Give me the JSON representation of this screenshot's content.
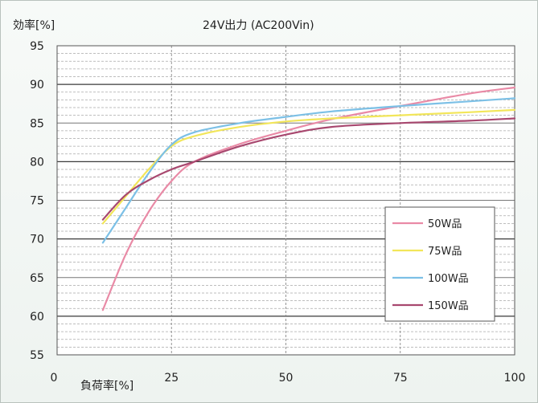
{
  "chart_data": {
    "type": "line",
    "title": "24V出力 (AC200Vin)",
    "ylabel": "効率[%]",
    "xlabel": "負荷率[%]",
    "xlim": [
      0,
      100
    ],
    "ylim": [
      55,
      95
    ],
    "x_ticks": [
      "0",
      "25",
      "50",
      "75",
      "100"
    ],
    "y_ticks": [
      "95",
      "90",
      "85",
      "80",
      "75",
      "70",
      "65",
      "60",
      "55"
    ],
    "grid": true,
    "legend_position": "bottom-right",
    "series": [
      {
        "name": "50W品",
        "color": "#e98aa6",
        "points": [
          [
            10,
            60.8
          ],
          [
            15,
            68
          ],
          [
            20,
            73.5
          ],
          [
            25,
            77.5
          ],
          [
            30,
            80
          ],
          [
            40,
            82.3
          ],
          [
            50,
            84
          ],
          [
            60,
            85.5
          ],
          [
            75,
            87.2
          ],
          [
            90,
            88.8
          ],
          [
            100,
            89.6
          ]
        ]
      },
      {
        "name": "75W品",
        "color": "#f2e65a",
        "points": [
          [
            10,
            72
          ],
          [
            15,
            75.5
          ],
          [
            20,
            79
          ],
          [
            25,
            82
          ],
          [
            30,
            83.3
          ],
          [
            40,
            84.5
          ],
          [
            50,
            85.2
          ],
          [
            60,
            85.6
          ],
          [
            75,
            86
          ],
          [
            90,
            86.4
          ],
          [
            100,
            86.7
          ]
        ]
      },
      {
        "name": "100W品",
        "color": "#7cc0e6",
        "points": [
          [
            10,
            69.5
          ],
          [
            15,
            74
          ],
          [
            20,
            78.5
          ],
          [
            25,
            82.2
          ],
          [
            30,
            83.8
          ],
          [
            40,
            85
          ],
          [
            50,
            85.8
          ],
          [
            60,
            86.5
          ],
          [
            75,
            87.2
          ],
          [
            90,
            87.8
          ],
          [
            100,
            88.2
          ]
        ]
      },
      {
        "name": "150W品",
        "color": "#a8486f",
        "points": [
          [
            10,
            72.5
          ],
          [
            15,
            75.7
          ],
          [
            20,
            77.6
          ],
          [
            25,
            79
          ],
          [
            30,
            80
          ],
          [
            40,
            82
          ],
          [
            50,
            83.5
          ],
          [
            60,
            84.5
          ],
          [
            75,
            85
          ],
          [
            90,
            85.3
          ],
          [
            100,
            85.6
          ]
        ]
      }
    ]
  }
}
